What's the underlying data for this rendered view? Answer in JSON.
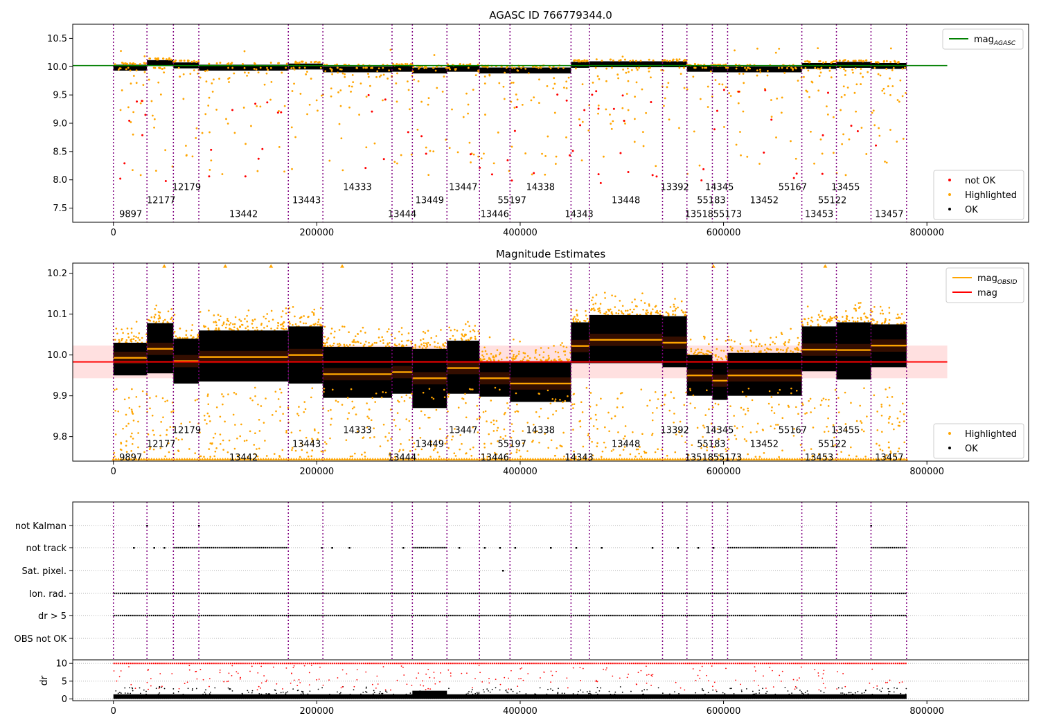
{
  "chart_data": [
    {
      "type": "scatter",
      "title": "AGASC ID 766779344.0",
      "xlabel": "",
      "ylabel": "",
      "xlim": [
        -40000,
        900000
      ],
      "ylim": [
        7.25,
        10.75
      ],
      "xticks": [
        0,
        200000,
        400000,
        600000,
        800000
      ],
      "xtick_labels": [
        "0",
        "200000",
        "400000",
        "600000",
        "800000"
      ],
      "yticks": [
        7.5,
        8.0,
        8.5,
        9.0,
        9.5,
        10.0,
        10.5
      ],
      "ytick_labels": [
        "7.5",
        "8.0",
        "8.5",
        "9.0",
        "9.5",
        "10.0",
        "10.5"
      ],
      "legend_upper": {
        "placement": "upper-right",
        "entries": [
          {
            "label": "mag",
            "sub": "AGASC",
            "color": "#008000",
            "kind": "line"
          }
        ]
      },
      "legend_lower": {
        "placement": "lower-right",
        "entries": [
          {
            "label": "not OK",
            "color": "#ff0000",
            "kind": "dot"
          },
          {
            "label": "Highlighted",
            "color": "#ffa500",
            "kind": "dot"
          },
          {
            "label": "OK",
            "color": "#000000",
            "kind": "dot"
          }
        ]
      },
      "agasc_mag_line": {
        "value": 10.02,
        "x": [
          -40000,
          820000
        ],
        "color": "#008000"
      },
      "obsid_boundaries": [
        0,
        33000,
        59000,
        84000,
        172000,
        206000,
        274000,
        294000,
        328000,
        360000,
        390000,
        450000,
        468000,
        540000,
        564000,
        589000,
        604000,
        677000,
        711000,
        745000,
        780000
      ],
      "obs_segments": [
        {
          "start": 0,
          "end": 33000,
          "mag": 10.0
        },
        {
          "start": 33000,
          "end": 59000,
          "mag": 10.08
        },
        {
          "start": 59000,
          "end": 84000,
          "mag": 10.04
        },
        {
          "start": 84000,
          "end": 172000,
          "mag": 10.0
        },
        {
          "start": 172000,
          "end": 206000,
          "mag": 10.02
        },
        {
          "start": 206000,
          "end": 274000,
          "mag": 9.97
        },
        {
          "start": 274000,
          "end": 294000,
          "mag": 9.98
        },
        {
          "start": 294000,
          "end": 328000,
          "mag": 9.95
        },
        {
          "start": 328000,
          "end": 360000,
          "mag": 9.98
        },
        {
          "start": 360000,
          "end": 390000,
          "mag": 9.95
        },
        {
          "start": 390000,
          "end": 450000,
          "mag": 9.95
        },
        {
          "start": 450000,
          "end": 468000,
          "mag": 10.05
        },
        {
          "start": 468000,
          "end": 540000,
          "mag": 10.06
        },
        {
          "start": 540000,
          "end": 564000,
          "mag": 10.06
        },
        {
          "start": 564000,
          "end": 589000,
          "mag": 9.98
        },
        {
          "start": 589000,
          "end": 604000,
          "mag": 9.97
        },
        {
          "start": 604000,
          "end": 677000,
          "mag": 9.97
        },
        {
          "start": 677000,
          "end": 711000,
          "mag": 10.03
        },
        {
          "start": 711000,
          "end": 745000,
          "mag": 10.05
        },
        {
          "start": 745000,
          "end": 780000,
          "mag": 10.03
        }
      ],
      "obsid_labels": [
        {
          "text": "9897",
          "x": 17000,
          "y": 7.4
        },
        {
          "text": "12177",
          "x": 47000,
          "y": 7.65
        },
        {
          "text": "12179",
          "x": 72000,
          "y": 7.88
        },
        {
          "text": "13442",
          "x": 128000,
          "y": 7.4
        },
        {
          "text": "13443",
          "x": 190000,
          "y": 7.65
        },
        {
          "text": "14333",
          "x": 240000,
          "y": 7.88
        },
        {
          "text": "13444",
          "x": 284000,
          "y": 7.4
        },
        {
          "text": "13449",
          "x": 311000,
          "y": 7.65
        },
        {
          "text": "13447",
          "x": 344000,
          "y": 7.88
        },
        {
          "text": "13446",
          "x": 375000,
          "y": 7.4
        },
        {
          "text": "55197",
          "x": 392000,
          "y": 7.65
        },
        {
          "text": "14338",
          "x": 420000,
          "y": 7.88
        },
        {
          "text": "14343",
          "x": 458000,
          "y": 7.4
        },
        {
          "text": "13448",
          "x": 504000,
          "y": 7.65
        },
        {
          "text": "13392",
          "x": 552000,
          "y": 7.88
        },
        {
          "text": "13518",
          "x": 576000,
          "y": 7.4
        },
        {
          "text": "55183",
          "x": 588000,
          "y": 7.65
        },
        {
          "text": "14345",
          "x": 596000,
          "y": 7.88
        },
        {
          "text": "55173",
          "x": 604000,
          "y": 7.4
        },
        {
          "text": "13452",
          "x": 640000,
          "y": 7.65
        },
        {
          "text": "55167",
          "x": 668000,
          "y": 7.88
        },
        {
          "text": "13453",
          "x": 694000,
          "y": 7.4
        },
        {
          "text": "55122",
          "x": 707000,
          "y": 7.65
        },
        {
          "text": "13455",
          "x": 720000,
          "y": 7.88
        },
        {
          "text": "13457",
          "x": 763000,
          "y": 7.4
        }
      ]
    },
    {
      "type": "scatter",
      "title": "Magnitude Estimates",
      "xlabel": "",
      "ylabel": "",
      "xlim": [
        -40000,
        900000
      ],
      "ylim": [
        9.74,
        10.225
      ],
      "xticks": [
        0,
        200000,
        400000,
        600000,
        800000
      ],
      "xtick_labels": [
        "0",
        "200000",
        "400000",
        "600000",
        "800000"
      ],
      "yticks": [
        9.8,
        9.9,
        10.0,
        10.1,
        10.2
      ],
      "ytick_labels": [
        "9.8",
        "9.9",
        "10.0",
        "10.1",
        "10.2"
      ],
      "legend_upper": {
        "placement": "upper-right",
        "entries": [
          {
            "label": "mag",
            "sub": "OBSID",
            "color": "#ffa500",
            "kind": "line"
          },
          {
            "label": "mag",
            "sub": "",
            "color": "#ff0000",
            "kind": "line"
          }
        ]
      },
      "legend_lower": {
        "placement": "lower-right",
        "entries": [
          {
            "label": "Highlighted",
            "color": "#ffa500",
            "kind": "dot"
          },
          {
            "label": "OK",
            "color": "#000000",
            "kind": "dot"
          }
        ]
      },
      "mag_line": {
        "value": 9.983,
        "band": [
          9.943,
          10.023
        ],
        "x": [
          -40000,
          820000
        ],
        "color": "#ff0000"
      },
      "obs_segments": [
        {
          "start": 0,
          "end": 33000,
          "mag": 9.993,
          "low": 9.95,
          "high": 10.03
        },
        {
          "start": 33000,
          "end": 59000,
          "mag": 10.015,
          "low": 9.955,
          "high": 10.078
        },
        {
          "start": 59000,
          "end": 84000,
          "mag": 9.985,
          "low": 9.93,
          "high": 10.04
        },
        {
          "start": 84000,
          "end": 172000,
          "mag": 9.995,
          "low": 9.935,
          "high": 10.06
        },
        {
          "start": 172000,
          "end": 206000,
          "mag": 10.0,
          "low": 9.93,
          "high": 10.07
        },
        {
          "start": 206000,
          "end": 274000,
          "mag": 9.953,
          "low": 9.895,
          "high": 10.02
        },
        {
          "start": 274000,
          "end": 294000,
          "mag": 9.958,
          "low": 9.905,
          "high": 10.02
        },
        {
          "start": 294000,
          "end": 328000,
          "mag": 9.943,
          "low": 9.87,
          "high": 10.015
        },
        {
          "start": 328000,
          "end": 360000,
          "mag": 9.968,
          "low": 9.905,
          "high": 10.035
        },
        {
          "start": 360000,
          "end": 390000,
          "mag": 9.943,
          "low": 9.898,
          "high": 9.985
        },
        {
          "start": 390000,
          "end": 450000,
          "mag": 9.93,
          "low": 9.885,
          "high": 9.985
        },
        {
          "start": 450000,
          "end": 468000,
          "mag": 10.022,
          "low": 9.98,
          "high": 10.08
        },
        {
          "start": 468000,
          "end": 540000,
          "mag": 10.037,
          "low": 9.98,
          "high": 10.098
        },
        {
          "start": 540000,
          "end": 564000,
          "mag": 10.03,
          "low": 9.97,
          "high": 10.095
        },
        {
          "start": 564000,
          "end": 589000,
          "mag": 9.95,
          "low": 9.9,
          "high": 10.0
        },
        {
          "start": 589000,
          "end": 604000,
          "mag": 9.937,
          "low": 9.89,
          "high": 9.985
        },
        {
          "start": 604000,
          "end": 677000,
          "mag": 9.95,
          "low": 9.9,
          "high": 10.005
        },
        {
          "start": 677000,
          "end": 711000,
          "mag": 10.013,
          "low": 9.96,
          "high": 10.07
        },
        {
          "start": 711000,
          "end": 745000,
          "mag": 10.012,
          "low": 9.94,
          "high": 10.08
        },
        {
          "start": 745000,
          "end": 780000,
          "mag": 10.023,
          "low": 9.97,
          "high": 10.075
        }
      ],
      "obsid_labels": [
        {
          "text": "9897",
          "x": 17000,
          "y": 9.75
        },
        {
          "text": "12177",
          "x": 47000,
          "y": 9.783
        },
        {
          "text": "12179",
          "x": 72000,
          "y": 9.817
        },
        {
          "text": "13442",
          "x": 128000,
          "y": 9.75
        },
        {
          "text": "13443",
          "x": 190000,
          "y": 9.783
        },
        {
          "text": "14333",
          "x": 240000,
          "y": 9.817
        },
        {
          "text": "13444",
          "x": 284000,
          "y": 9.75
        },
        {
          "text": "13449",
          "x": 311000,
          "y": 9.783
        },
        {
          "text": "13447",
          "x": 344000,
          "y": 9.817
        },
        {
          "text": "13446",
          "x": 375000,
          "y": 9.75
        },
        {
          "text": "55197",
          "x": 392000,
          "y": 9.783
        },
        {
          "text": "14338",
          "x": 420000,
          "y": 9.817
        },
        {
          "text": "14343",
          "x": 458000,
          "y": 9.75
        },
        {
          "text": "13448",
          "x": 504000,
          "y": 9.783
        },
        {
          "text": "13392",
          "x": 552000,
          "y": 9.817
        },
        {
          "text": "13518",
          "x": 576000,
          "y": 9.75
        },
        {
          "text": "55183",
          "x": 588000,
          "y": 9.783
        },
        {
          "text": "14345",
          "x": 596000,
          "y": 9.817
        },
        {
          "text": "55173",
          "x": 604000,
          "y": 9.75
        },
        {
          "text": "13452",
          "x": 640000,
          "y": 9.783
        },
        {
          "text": "55167",
          "x": 668000,
          "y": 9.817
        },
        {
          "text": "13453",
          "x": 694000,
          "y": 9.75
        },
        {
          "text": "55122",
          "x": 707000,
          "y": 9.783
        },
        {
          "text": "13455",
          "x": 720000,
          "y": 9.817
        },
        {
          "text": "13457",
          "x": 763000,
          "y": 9.75
        }
      ]
    },
    {
      "type": "scatter",
      "title": "",
      "xlabel": "",
      "ylabel": "",
      "xlim": [
        -40000,
        900000
      ],
      "categories": [
        "not Kalman",
        "not track",
        "Sat. pixel.",
        "Ion. rad.",
        "dr > 5",
        "OBS not OK"
      ],
      "grid": "horizontal-dotted",
      "flag_rows": [
        {
          "label": "not Kalman",
          "ranges": [],
          "sparse": [
            33000,
            84000,
            745000
          ]
        },
        {
          "label": "not track",
          "ranges": [
            [
              59000,
              172000
            ],
            [
              294000,
              328000
            ],
            [
              604000,
              711000
            ],
            [
              745000,
              780000
            ]
          ],
          "sparse": [
            20000,
            40000,
            50000,
            205000,
            215000,
            232000,
            285000,
            340000,
            365000,
            380000,
            395000,
            430000,
            455000,
            480000,
            530000,
            555000,
            575000,
            590000
          ]
        },
        {
          "label": "Sat. pixel.",
          "ranges": [],
          "sparse": [
            383000
          ]
        },
        {
          "label": "Ion. rad.",
          "ranges": [
            [
              0,
              780000
            ]
          ],
          "sparse": []
        },
        {
          "label": "dr > 5",
          "ranges": [
            [
              0,
              780000
            ]
          ],
          "sparse": []
        },
        {
          "label": "OBS not OK",
          "ranges": [],
          "sparse": []
        }
      ]
    },
    {
      "type": "scatter",
      "title": "",
      "xlabel": "",
      "ylabel": "dr",
      "xlim": [
        -40000,
        900000
      ],
      "ylim": [
        -0.5,
        11
      ],
      "xticks": [
        0,
        200000,
        400000,
        600000,
        800000
      ],
      "xtick_labels": [
        "0",
        "200000",
        "400000",
        "600000",
        "800000"
      ],
      "yticks": [
        0,
        5,
        10
      ],
      "ytick_labels": [
        "0",
        "5",
        "10"
      ],
      "series": [
        {
          "name": "",
          "color": "#ff0000",
          "description_value": 10
        },
        {
          "name": "",
          "color": "#000000",
          "description_value": 1
        }
      ]
    }
  ],
  "colors": {
    "agasc": "#008000",
    "highlighted": "#ffa500",
    "not_ok": "#ff0000",
    "ok": "#000000",
    "boundary": "#800080",
    "band": "#ffd6d6"
  }
}
